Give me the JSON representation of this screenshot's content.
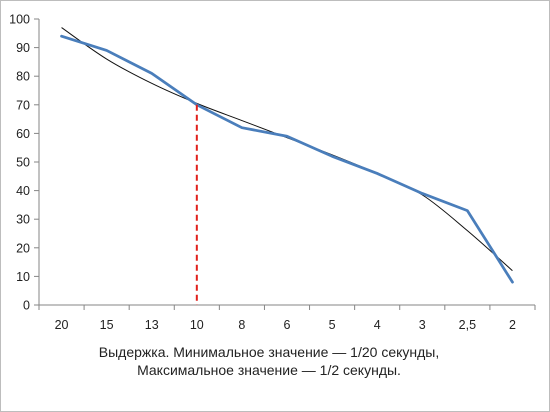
{
  "chart_data": {
    "type": "line",
    "categories": [
      "20",
      "15",
      "13",
      "10",
      "8",
      "6",
      "5",
      "4",
      "3",
      "2,5",
      "2"
    ],
    "series": [
      {
        "values": [
          94,
          89,
          81,
          70,
          62,
          59,
          52,
          46,
          39,
          33,
          8
        ],
        "color": "#4a7ebb"
      },
      {
        "values": [
          97,
          86,
          77.5,
          70.5,
          64.5,
          58.5,
          52.5,
          46,
          38.5,
          26,
          12
        ],
        "color": "#111111",
        "kind": "trend"
      }
    ],
    "ylim": [
      0,
      100
    ],
    "yticks": [
      0,
      10,
      20,
      30,
      40,
      50,
      60,
      70,
      80,
      90,
      100
    ],
    "grid": false,
    "marker_line": {
      "category": "10",
      "value": 70,
      "color": "#e0201b",
      "style": "dashed"
    }
  },
  "caption": {
    "line1": "Выдержка. Минимальное значение — 1/20 секунды,",
    "line2": "Максимальное значение — 1/2 секунды."
  }
}
